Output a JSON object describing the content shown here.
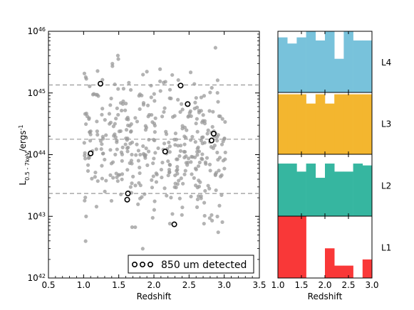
{
  "chart_data": [
    {
      "type": "scatter",
      "xlabel": "Redshift",
      "ylabel": {
        "base": "L",
        "sub": "0.5 - 7keV",
        "unit": "/ergs",
        "unit_sup": "-1"
      },
      "xlim": [
        0.5,
        3.5
      ],
      "ylim_log10": [
        42,
        46
      ],
      "log_y": true,
      "xticks": [
        "0.5",
        "1.0",
        "1.5",
        "2.0",
        "2.5",
        "3.0",
        "3.5"
      ],
      "yticks": [
        {
          "log": 42,
          "base": "10",
          "exp": "42"
        },
        {
          "log": 43,
          "base": "10",
          "exp": "43"
        },
        {
          "log": 44,
          "base": "10",
          "exp": "44"
        },
        {
          "log": 45,
          "base": "10",
          "exp": "45"
        },
        {
          "log": 46,
          "base": "10",
          "exp": "46"
        }
      ],
      "bin_boundaries_log10": [
        43.37,
        44.25,
        45.13
      ],
      "legend": {
        "label": "850 um detected",
        "position": "lower-right"
      },
      "colors": {
        "points": "#999999",
        "boundary_lines": "#999999",
        "detected_edge": "#000000"
      },
      "series": [
        {
          "name": "850 um detected",
          "points": [
            [
              1.24,
              45.15
            ],
            [
              2.38,
              45.12
            ],
            [
              2.48,
              44.82
            ],
            [
              2.85,
              44.34
            ],
            [
              2.82,
              44.23
            ],
            [
              1.1,
              44.02
            ],
            [
              2.16,
              44.05
            ],
            [
              1.63,
              43.37
            ],
            [
              1.62,
              43.27
            ],
            [
              2.29,
              42.87
            ]
          ]
        }
      ]
    },
    {
      "type": "bar",
      "title": "L4",
      "xlabel": "Redshift",
      "xlim": [
        1.0,
        3.0
      ],
      "bin_edges": [
        1.0,
        1.2,
        1.4,
        1.6,
        1.8,
        2.0,
        2.2,
        2.4,
        2.6,
        2.8,
        3.0
      ],
      "values": [
        0.9,
        0.8,
        0.9,
        1.0,
        0.85,
        1.0,
        0.55,
        1.0,
        0.85,
        0.85
      ],
      "color": "#78c2db"
    },
    {
      "type": "bar",
      "title": "L3",
      "xlim": [
        1.0,
        3.0
      ],
      "bin_edges": [
        1.0,
        1.2,
        1.4,
        1.6,
        1.8,
        2.0,
        2.2,
        2.4,
        2.6,
        2.8,
        3.0
      ],
      "values": [
        0.97,
        0.97,
        0.97,
        0.82,
        0.97,
        0.82,
        0.97,
        0.97,
        0.97,
        0.97
      ],
      "color": "#f3b62f"
    },
    {
      "type": "bar",
      "title": "L2",
      "xlim": [
        1.0,
        3.0
      ],
      "bin_edges": [
        1.0,
        1.2,
        1.4,
        1.6,
        1.8,
        2.0,
        2.2,
        2.4,
        2.6,
        2.8,
        3.0
      ],
      "values": [
        0.85,
        0.85,
        0.72,
        0.85,
        0.62,
        0.85,
        0.72,
        0.72,
        0.85,
        0.82
      ],
      "color": "#36b6a0"
    },
    {
      "type": "bar",
      "title": "L1",
      "xlim": [
        1.0,
        3.0
      ],
      "bin_edges": [
        1.0,
        1.2,
        1.4,
        1.6,
        1.8,
        2.0,
        2.2,
        2.4,
        2.6,
        2.8,
        3.0
      ],
      "values": [
        1.0,
        1.0,
        1.0,
        0.0,
        0.0,
        0.48,
        0.2,
        0.2,
        0.0,
        0.3
      ],
      "color": "#f93838"
    }
  ]
}
